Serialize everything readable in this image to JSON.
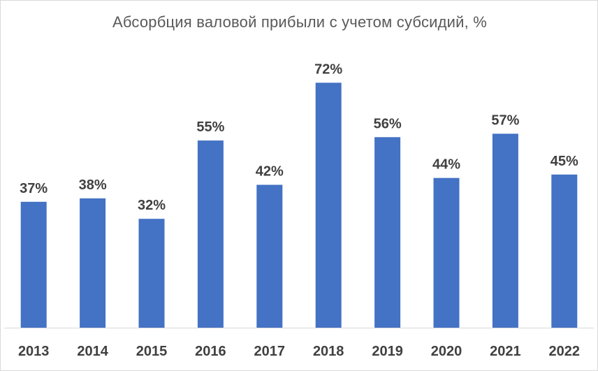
{
  "chart_data": {
    "type": "bar",
    "title": "Абсорбция валовой прибыли с учетом субсидий, %",
    "categories": [
      "2013",
      "2014",
      "2015",
      "2016",
      "2017",
      "2018",
      "2019",
      "2020",
      "2021",
      "2022"
    ],
    "values": [
      37,
      38,
      32,
      55,
      42,
      72,
      56,
      44,
      57,
      45
    ],
    "value_labels": [
      "37%",
      "38%",
      "32%",
      "55%",
      "42%",
      "72%",
      "56%",
      "44%",
      "57%",
      "45%"
    ],
    "unit": "%",
    "xlabel": "",
    "ylabel": "",
    "ylim": [
      0,
      80
    ],
    "grid": false,
    "legend": "none",
    "bar_color": "#4472c4"
  }
}
